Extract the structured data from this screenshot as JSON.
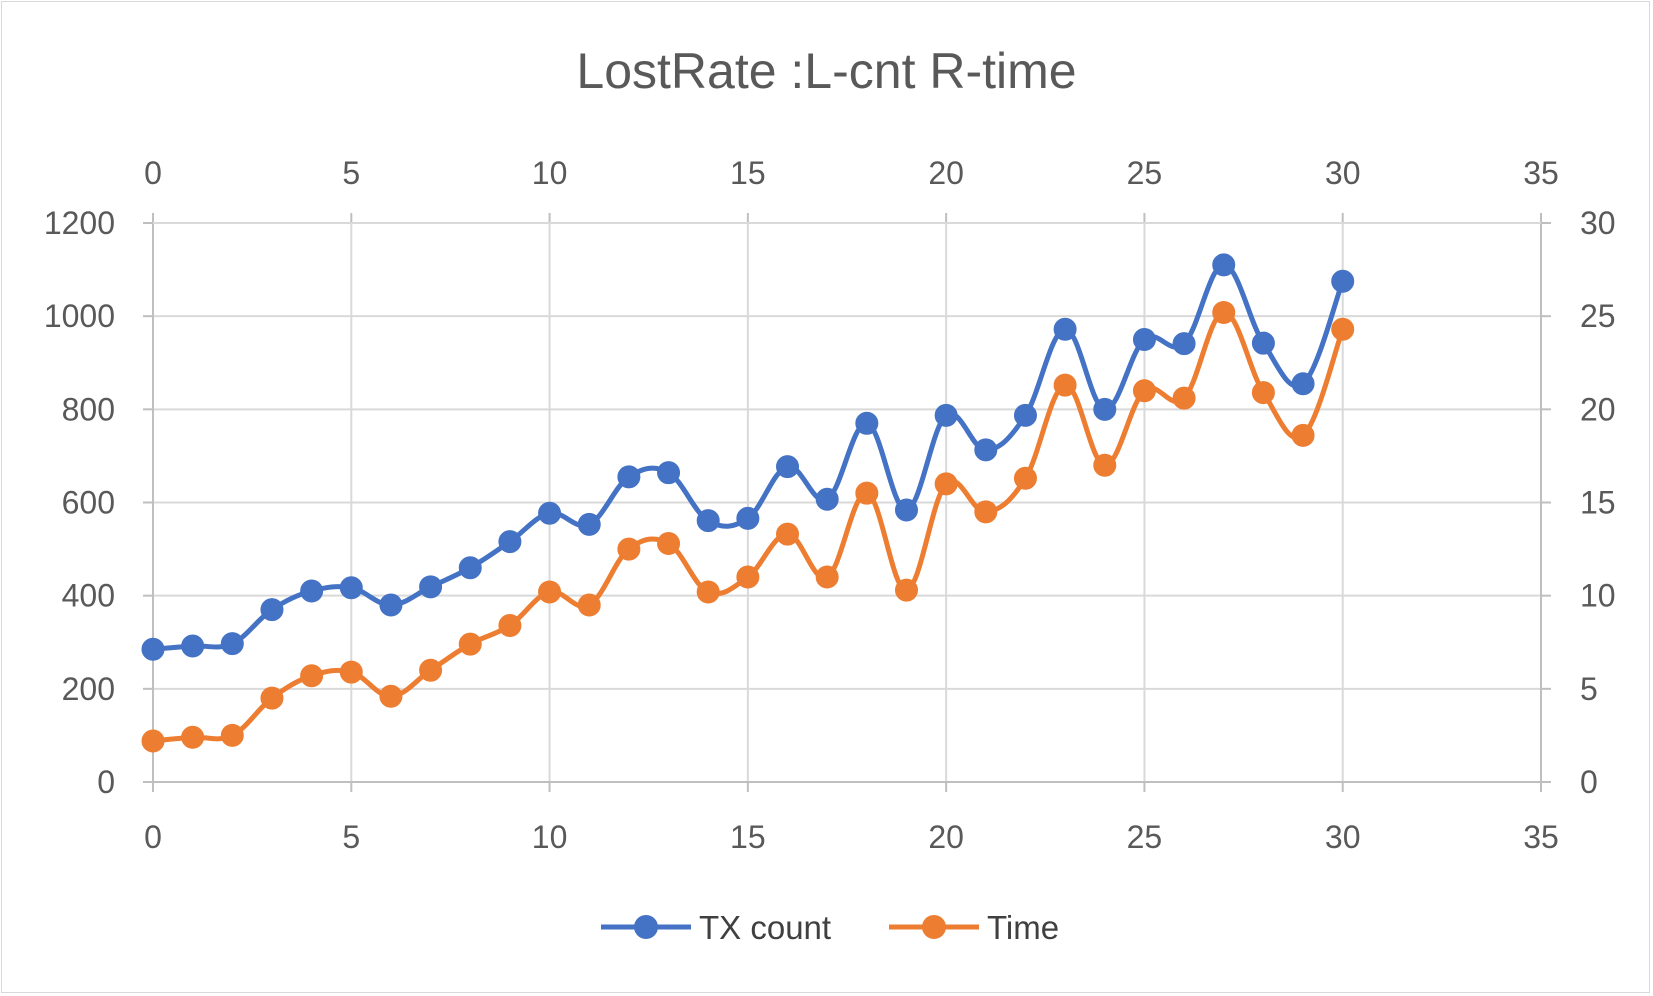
{
  "chart_data": {
    "type": "scatter",
    "title": "LostRate :L-cnt R-time",
    "x_axis": {
      "min": 0,
      "max": 35,
      "ticks": [
        "0",
        "5",
        "10",
        "15",
        "20",
        "25",
        "30",
        "35"
      ]
    },
    "y_left": {
      "min": 0,
      "max": 1200,
      "ticks": [
        "0",
        "200",
        "400",
        "600",
        "800",
        "1000",
        "1200"
      ]
    },
    "y_right": {
      "min": 0,
      "max": 30,
      "ticks": [
        "0",
        "5",
        "10",
        "15",
        "20",
        "25",
        "30"
      ]
    },
    "grid": true,
    "legend_position": "bottom",
    "series": [
      {
        "name": "TX count",
        "axis": "left",
        "color": "#4472C4",
        "x": [
          0,
          1,
          2,
          3,
          4,
          5,
          6,
          7,
          8,
          9,
          10,
          11,
          12,
          13,
          14,
          15,
          16,
          17,
          18,
          19,
          20,
          21,
          22,
          23,
          24,
          25,
          26,
          27,
          28,
          29,
          30
        ],
        "y": [
          285,
          292,
          297,
          370,
          410,
          417,
          380,
          419,
          460,
          516,
          577,
          553,
          655,
          664,
          561,
          566,
          677,
          607,
          770,
          584,
          787,
          713,
          787,
          972,
          800,
          950,
          941,
          1110,
          942,
          855,
          1075
        ]
      },
      {
        "name": "Time",
        "axis": "right",
        "color": "#ED7D31",
        "x": [
          0,
          1,
          2,
          3,
          4,
          5,
          6,
          7,
          8,
          9,
          10,
          11,
          12,
          13,
          14,
          15,
          16,
          17,
          18,
          19,
          20,
          21,
          22,
          23,
          24,
          25,
          26,
          27,
          28,
          29,
          30
        ],
        "y": [
          2.2,
          2.4,
          2.5,
          4.5,
          5.7,
          5.9,
          4.6,
          6.0,
          7.4,
          8.4,
          10.2,
          9.5,
          12.5,
          12.8,
          10.2,
          11.0,
          13.3,
          11.0,
          15.5,
          10.3,
          16.0,
          14.5,
          16.3,
          21.3,
          17.0,
          21.0,
          20.6,
          25.2,
          20.9,
          18.6,
          24.3
        ]
      }
    ]
  }
}
